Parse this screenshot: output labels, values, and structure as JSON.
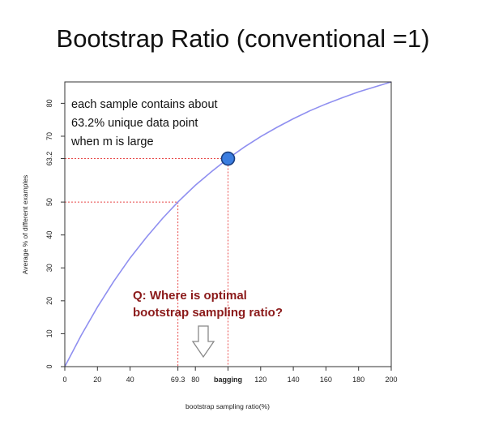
{
  "title": "Bootstrap Ratio (conventional =1)",
  "colors": {
    "curve": "#8f8ff0",
    "guide": "#e84848",
    "marker_fill": "#3b7de0",
    "marker_stroke": "#1a3f80",
    "question": "#8b1a1a",
    "arrow": "#888888"
  },
  "annotation": {
    "lines": [
      "each sample contains about",
      "63.2% unique data point",
      "when m is large"
    ]
  },
  "question": {
    "lines": [
      "Q: Where is optimal",
      "bootstrap sampling ratio?"
    ],
    "icon": "down-arrow-icon"
  },
  "chart_data": {
    "type": "line",
    "title": "",
    "xlabel": "bootstrap sampling ratio(%)",
    "ylabel": "Average % of different examples",
    "xlim": [
      0,
      200
    ],
    "ylim": [
      0,
      86.5
    ],
    "x_ticks": [
      {
        "value": 0,
        "label": "0"
      },
      {
        "value": 20,
        "label": "20"
      },
      {
        "value": 40,
        "label": "40"
      },
      {
        "value": 69.3,
        "label": "69.3"
      },
      {
        "value": 80,
        "label": "80"
      },
      {
        "value": 100,
        "label": "bagging",
        "bold": true
      },
      {
        "value": 120,
        "label": "120"
      },
      {
        "value": 140,
        "label": "140"
      },
      {
        "value": 160,
        "label": "160"
      },
      {
        "value": 180,
        "label": "180"
      },
      {
        "value": 200,
        "label": "200"
      }
    ],
    "y_ticks": [
      {
        "value": 0,
        "label": "0"
      },
      {
        "value": 10,
        "label": "10"
      },
      {
        "value": 20,
        "label": "20"
      },
      {
        "value": 30,
        "label": "30"
      },
      {
        "value": 40,
        "label": "40"
      },
      {
        "value": 50,
        "label": "50"
      },
      {
        "value": 63.2,
        "label": "63.2"
      },
      {
        "value": 70,
        "label": "70"
      },
      {
        "value": 80,
        "label": "80"
      }
    ],
    "series": [
      {
        "x": [
          0,
          10,
          20,
          30,
          40,
          50,
          60,
          69.3,
          80,
          90,
          100,
          110,
          120,
          130,
          140,
          150,
          160,
          170,
          180,
          190,
          200
        ],
        "y": [
          0,
          9.5,
          18.1,
          25.9,
          33.0,
          39.3,
          45.1,
          50.0,
          55.1,
          59.3,
          63.2,
          66.7,
          69.9,
          72.7,
          75.3,
          77.7,
          79.8,
          81.7,
          83.5,
          85.0,
          86.5
        ]
      }
    ],
    "guides": [
      {
        "x": 69.3,
        "y": 50
      },
      {
        "x": 100,
        "y": 63.2
      }
    ],
    "highlight_point": {
      "x": 100,
      "y": 63.2
    },
    "grid": false
  }
}
